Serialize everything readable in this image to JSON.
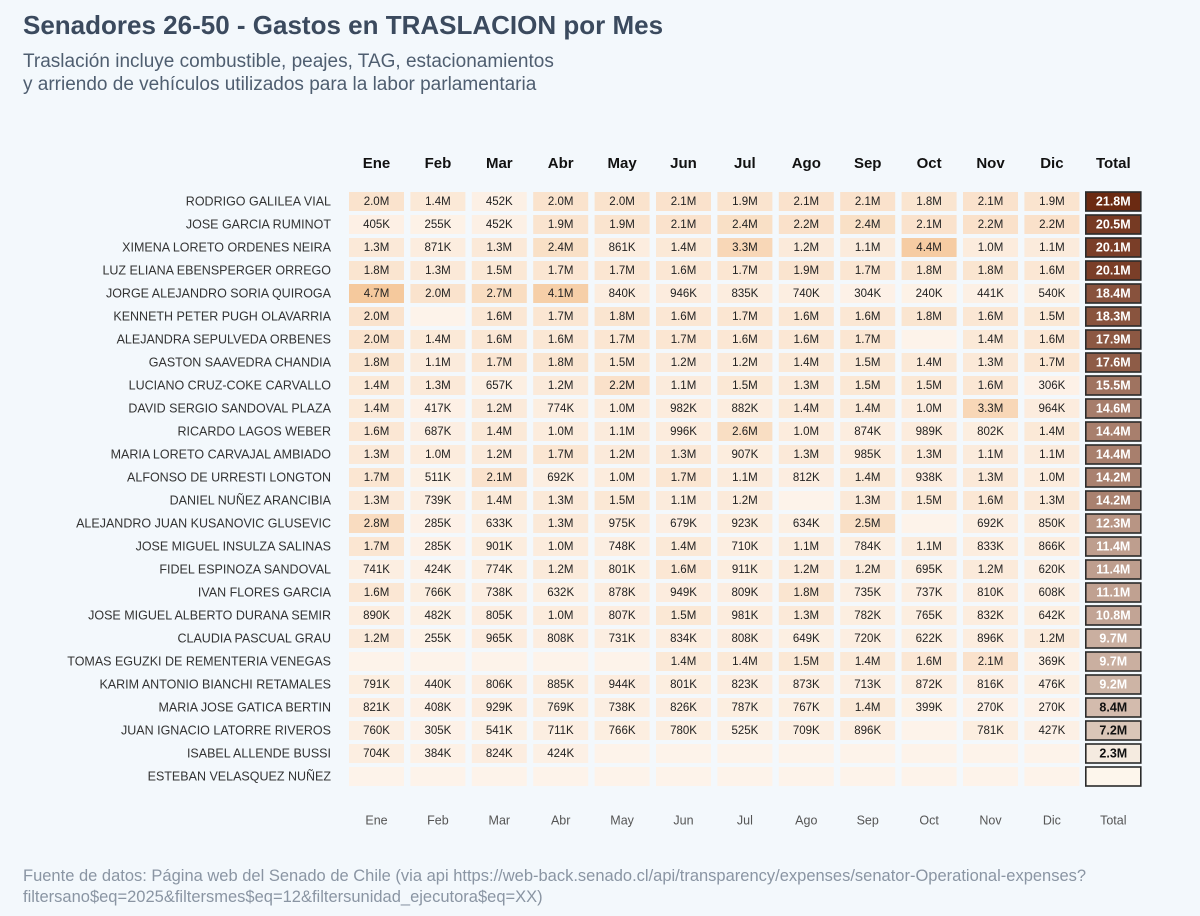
{
  "title": "Senadores 26-50 - Gastos en TRASLACION por Mes",
  "subtitle_line1": "Traslación incluye combustible, peajes, TAG, estacionamientos",
  "subtitle_line2": "y arriendo de vehículos utilizados para la labor parlamentaria",
  "source_line1": "Fuente de datos: Página web del Senado de Chile (via api https://web-back.senado.cl/api/transparency/expenses/senator-Operational-expenses?",
  "source_line2": "filtersano$eq=2025&filtersmes$eq=12&filtersunidad_ejecutora$eq=XX)",
  "colors": {
    "cell_low": "#fdf3ea",
    "cell_high": "#f5c99d",
    "total_low": "#fdf6ec",
    "total_high": "#6b2a12",
    "total_border": "#2b2b2b"
  },
  "chart_data": {
    "type": "heatmap",
    "columns": [
      "Ene",
      "Feb",
      "Mar",
      "Abr",
      "May",
      "Jun",
      "Jul",
      "Ago",
      "Sep",
      "Oct",
      "Nov",
      "Dic",
      "Total"
    ],
    "rows": [
      {
        "name": "RODRIGO GALILEA VIAL",
        "values": [
          "2.0M",
          "1.4M",
          "452K",
          "2.0M",
          "2.0M",
          "2.1M",
          "1.9M",
          "2.1M",
          "2.1M",
          "1.8M",
          "2.1M",
          "1.9M"
        ],
        "total": "21.8M"
      },
      {
        "name": "JOSE GARCIA RUMINOT",
        "values": [
          "405K",
          "255K",
          "452K",
          "1.9M",
          "1.9M",
          "2.1M",
          "2.4M",
          "2.2M",
          "2.4M",
          "2.1M",
          "2.2M",
          "2.2M"
        ],
        "total": "20.5M"
      },
      {
        "name": "XIMENA LORETO ORDENES NEIRA",
        "values": [
          "1.3M",
          "871K",
          "1.3M",
          "2.4M",
          "861K",
          "1.4M",
          "3.3M",
          "1.2M",
          "1.1M",
          "4.4M",
          "1.0M",
          "1.1M"
        ],
        "total": "20.1M"
      },
      {
        "name": "LUZ ELIANA EBENSPERGER ORREGO",
        "values": [
          "1.8M",
          "1.3M",
          "1.5M",
          "1.7M",
          "1.7M",
          "1.6M",
          "1.7M",
          "1.9M",
          "1.7M",
          "1.8M",
          "1.8M",
          "1.6M"
        ],
        "total": "20.1M"
      },
      {
        "name": "JORGE ALEJANDRO SORIA QUIROGA",
        "values": [
          "4.7M",
          "2.0M",
          "2.7M",
          "4.1M",
          "840K",
          "946K",
          "835K",
          "740K",
          "304K",
          "240K",
          "441K",
          "540K"
        ],
        "total": "18.4M"
      },
      {
        "name": "KENNETH PETER PUGH OLAVARRIA",
        "values": [
          "2.0M",
          "",
          "1.6M",
          "1.7M",
          "1.8M",
          "1.6M",
          "1.7M",
          "1.6M",
          "1.6M",
          "1.8M",
          "1.6M",
          "1.5M"
        ],
        "total": "18.3M"
      },
      {
        "name": "ALEJANDRA SEPULVEDA ORBENES",
        "values": [
          "2.0M",
          "1.4M",
          "1.6M",
          "1.6M",
          "1.7M",
          "1.7M",
          "1.6M",
          "1.6M",
          "1.7M",
          "",
          "1.4M",
          "1.6M"
        ],
        "total": "17.9M"
      },
      {
        "name": "GASTON SAAVEDRA CHANDIA",
        "values": [
          "1.8M",
          "1.1M",
          "1.7M",
          "1.8M",
          "1.5M",
          "1.2M",
          "1.2M",
          "1.4M",
          "1.5M",
          "1.4M",
          "1.3M",
          "1.7M"
        ],
        "total": "17.6M"
      },
      {
        "name": "LUCIANO CRUZ-COKE CARVALLO",
        "values": [
          "1.4M",
          "1.3M",
          "657K",
          "1.2M",
          "2.2M",
          "1.1M",
          "1.5M",
          "1.3M",
          "1.5M",
          "1.5M",
          "1.6M",
          "306K"
        ],
        "total": "15.5M"
      },
      {
        "name": "DAVID SERGIO SANDOVAL PLAZA",
        "values": [
          "1.4M",
          "417K",
          "1.2M",
          "774K",
          "1.0M",
          "982K",
          "882K",
          "1.4M",
          "1.4M",
          "1.0M",
          "3.3M",
          "964K"
        ],
        "total": "14.6M"
      },
      {
        "name": "RICARDO LAGOS WEBER",
        "values": [
          "1.6M",
          "687K",
          "1.4M",
          "1.0M",
          "1.1M",
          "996K",
          "2.6M",
          "1.0M",
          "874K",
          "989K",
          "802K",
          "1.4M"
        ],
        "total": "14.4M"
      },
      {
        "name": "MARIA LORETO CARVAJAL AMBIADO",
        "values": [
          "1.3M",
          "1.0M",
          "1.2M",
          "1.7M",
          "1.2M",
          "1.3M",
          "907K",
          "1.3M",
          "985K",
          "1.3M",
          "1.1M",
          "1.1M"
        ],
        "total": "14.4M"
      },
      {
        "name": "ALFONSO DE URRESTI LONGTON",
        "values": [
          "1.7M",
          "511K",
          "2.1M",
          "692K",
          "1.0M",
          "1.7M",
          "1.1M",
          "812K",
          "1.4M",
          "938K",
          "1.3M",
          "1.0M"
        ],
        "total": "14.2M"
      },
      {
        "name": "DANIEL NUÑEZ ARANCIBIA",
        "values": [
          "1.3M",
          "739K",
          "1.4M",
          "1.3M",
          "1.5M",
          "1.1M",
          "1.2M",
          "",
          "1.3M",
          "1.5M",
          "1.6M",
          "1.3M"
        ],
        "total": "14.2M"
      },
      {
        "name": "ALEJANDRO JUAN KUSANOVIC GLUSEVIC",
        "values": [
          "2.8M",
          "285K",
          "633K",
          "1.3M",
          "975K",
          "679K",
          "923K",
          "634K",
          "2.5M",
          "",
          "692K",
          "850K"
        ],
        "total": "12.3M"
      },
      {
        "name": "JOSE MIGUEL INSULZA SALINAS",
        "values": [
          "1.7M",
          "285K",
          "901K",
          "1.0M",
          "748K",
          "1.4M",
          "710K",
          "1.1M",
          "784K",
          "1.1M",
          "833K",
          "866K"
        ],
        "total": "11.4M"
      },
      {
        "name": "FIDEL ESPINOZA SANDOVAL",
        "values": [
          "741K",
          "424K",
          "774K",
          "1.2M",
          "801K",
          "1.6M",
          "911K",
          "1.2M",
          "1.2M",
          "695K",
          "1.2M",
          "620K"
        ],
        "total": "11.4M"
      },
      {
        "name": "IVAN FLORES GARCIA",
        "values": [
          "1.6M",
          "766K",
          "738K",
          "632K",
          "878K",
          "949K",
          "809K",
          "1.8M",
          "735K",
          "737K",
          "810K",
          "608K"
        ],
        "total": "11.1M"
      },
      {
        "name": "JOSE MIGUEL ALBERTO DURANA SEMIR",
        "values": [
          "890K",
          "482K",
          "805K",
          "1.0M",
          "807K",
          "1.5M",
          "981K",
          "1.3M",
          "782K",
          "765K",
          "832K",
          "642K"
        ],
        "total": "10.8M"
      },
      {
        "name": "CLAUDIA PASCUAL GRAU",
        "values": [
          "1.2M",
          "255K",
          "965K",
          "808K",
          "731K",
          "834K",
          "808K",
          "649K",
          "720K",
          "622K",
          "896K",
          "1.2M"
        ],
        "total": "9.7M"
      },
      {
        "name": "TOMAS EGUZKI DE REMENTERIA VENEGAS",
        "values": [
          "",
          "",
          "",
          "",
          "",
          "1.4M",
          "1.4M",
          "1.5M",
          "1.4M",
          "1.6M",
          "2.1M",
          "369K"
        ],
        "total": "9.7M"
      },
      {
        "name": "KARIM ANTONIO BIANCHI RETAMALES",
        "values": [
          "791K",
          "440K",
          "806K",
          "885K",
          "944K",
          "801K",
          "823K",
          "873K",
          "713K",
          "872K",
          "816K",
          "476K"
        ],
        "total": "9.2M"
      },
      {
        "name": "MARIA JOSE GATICA BERTIN",
        "values": [
          "821K",
          "408K",
          "929K",
          "769K",
          "738K",
          "826K",
          "787K",
          "767K",
          "1.4M",
          "399K",
          "270K",
          "270K"
        ],
        "total": "8.4M"
      },
      {
        "name": "JUAN IGNACIO LATORRE RIVEROS",
        "values": [
          "760K",
          "305K",
          "541K",
          "711K",
          "766K",
          "780K",
          "525K",
          "709K",
          "896K",
          "",
          "781K",
          "427K"
        ],
        "total": "7.2M"
      },
      {
        "name": "ISABEL ALLENDE BUSSI",
        "values": [
          "704K",
          "384K",
          "824K",
          "424K",
          "",
          "",
          "",
          "",
          "",
          "",
          "",
          ""
        ],
        "total": "2.3M"
      },
      {
        "name": "ESTEBAN VELASQUEZ NUÑEZ",
        "values": [
          "",
          "",
          "",
          "",
          "",
          "",
          "",
          "",
          "",
          "",
          "",
          ""
        ],
        "total": ""
      }
    ]
  }
}
